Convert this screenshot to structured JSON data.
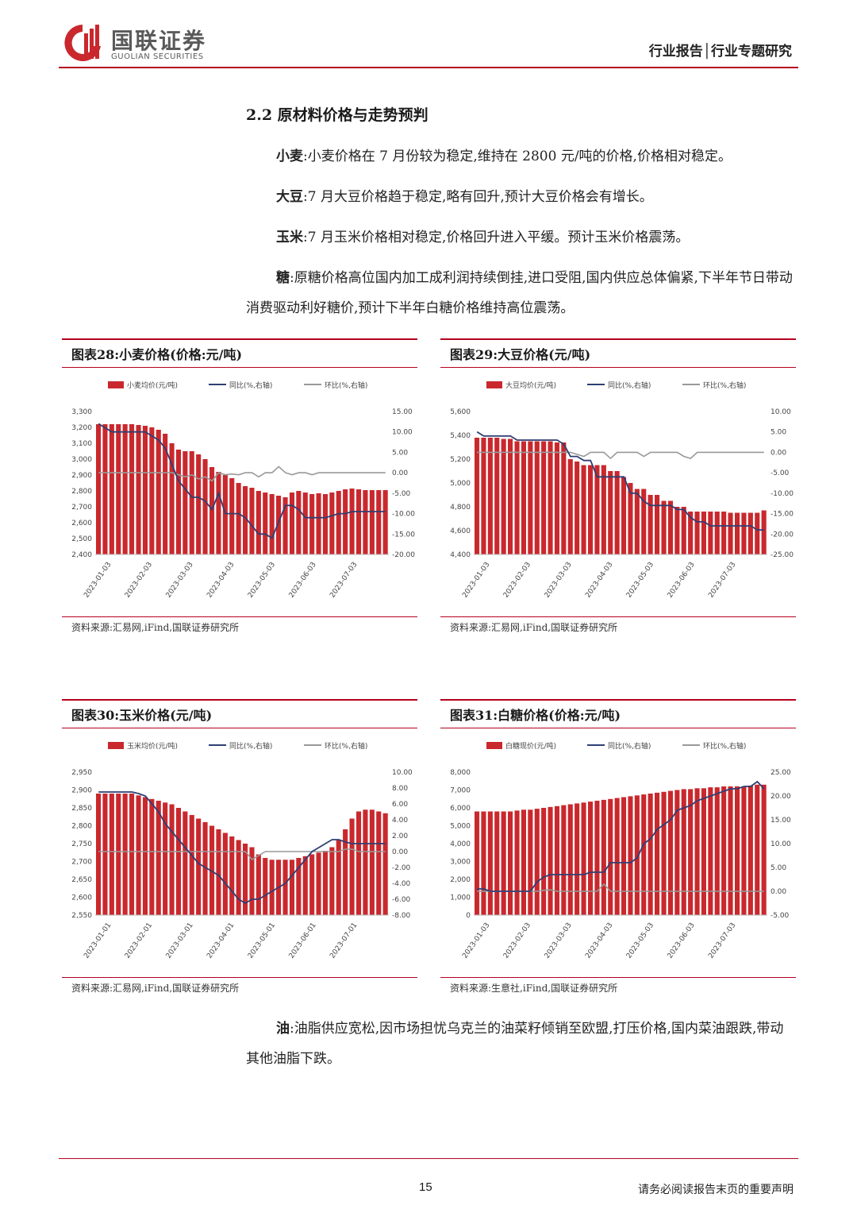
{
  "header": {
    "logo_cn": "国联证券",
    "logo_en": "GUOLIAN SECURITIES",
    "report_type": "行业报告│行业专题研究",
    "brand_color": "#b4001e"
  },
  "section": {
    "title": "2.2 原材料价格与走势预判",
    "paragraphs": [
      {
        "lead": "小麦",
        "text": ":小麦价格在 7 月份较为稳定,维持在 2800 元/吨的价格,价格相对稳定。"
      },
      {
        "lead": "大豆",
        "text": ":7 月大豆价格趋于稳定,略有回升,预计大豆价格会有增长。"
      },
      {
        "lead": "玉米",
        "text": ":7 月玉米价格相对稳定,价格回升进入平缓。预计玉米价格震荡。"
      },
      {
        "lead": "糖",
        "text": ":原糖价格高位国内加工成利润持续倒挂,进口受阻,国内供应总体偏紧,下半年节日带动消费驱动利好糖价,预计下半年白糖价格维持高位震荡。"
      }
    ],
    "oil": {
      "lead": "油",
      "text": ":油脂供应宽松,因市场担忧乌克兰的油菜籽倾销至欧盟,打压价格,国内菜油跟跌,带动其他油脂下跌。"
    }
  },
  "charts": [
    {
      "title": "图表28:小麦价格(价格:元/吨)",
      "source": "资料来源:汇易网,iFind,国联证券研究所"
    },
    {
      "title": "图表29:大豆价格(元/吨)",
      "source": "资料来源:汇易网,iFind,国联证券研究所"
    },
    {
      "title": "图表30:玉米价格(元/吨)",
      "source": "资料来源:汇易网,iFind,国联证券研究所"
    },
    {
      "title": "图表31:白糖价格(价格:元/吨)",
      "source": "资料来源:生意社,iFind,国联证券研究所"
    }
  ],
  "chart_data": [
    {
      "type": "bar",
      "legend": [
        "小麦均价(元/吨)",
        "同比(%,右轴)",
        "环比(%,右轴)"
      ],
      "colors": {
        "bar": "#c9282d",
        "yoy": "#2e3f74",
        "mom": "#999999"
      },
      "xticks": [
        "2023-01-03",
        "2023-02-03",
        "2023-03-03",
        "2023-04-03",
        "2023-05-03",
        "2023-06-03",
        "2023-07-03"
      ],
      "yticks_left": [
        "3,300",
        "3,200",
        "3,100",
        "3,000",
        "2,900",
        "2,800",
        "2,700",
        "2,600",
        "2,500",
        "2,400"
      ],
      "yticks_right": [
        "15.00",
        "10.00",
        "5.00",
        "0.00",
        "-5.00",
        "-10.00",
        "-15.00",
        "-20.00"
      ],
      "ylim_left": [
        2400,
        3300
      ],
      "ylim_right": [
        -20,
        15
      ],
      "price": [
        3220,
        3220,
        3220,
        3220,
        3220,
        3220,
        3215,
        3210,
        3200,
        3185,
        3160,
        3100,
        3060,
        3050,
        3050,
        3030,
        3000,
        2950,
        2920,
        2900,
        2880,
        2850,
        2830,
        2820,
        2800,
        2790,
        2780,
        2770,
        2760,
        2790,
        2800,
        2790,
        2780,
        2785,
        2780,
        2790,
        2800,
        2810,
        2815,
        2810,
        2805,
        2805,
        2805,
        2805
      ],
      "yoy": [
        12,
        11,
        10,
        10,
        10,
        10,
        10,
        10,
        9,
        8,
        6,
        2,
        -2,
        -4,
        -6,
        -6,
        -7,
        -9,
        -5,
        -10,
        -10,
        -10,
        -11,
        -13,
        -15,
        -15,
        -16,
        -12,
        -8,
        -8,
        -9,
        -11,
        -11,
        -11,
        -11,
        -10.5,
        -10,
        -10,
        -9.5,
        -9.5,
        -9.5,
        -9.5,
        -9.5,
        -9.5
      ],
      "mom": [
        0,
        0,
        0,
        0,
        0,
        0,
        0,
        0,
        0,
        0,
        0,
        0,
        -0.5,
        -1,
        -0.5,
        -1.5,
        -1,
        -2,
        0,
        -0.5,
        -0.3,
        -0.5,
        0,
        0,
        -1,
        0,
        0,
        1.5,
        0,
        -0.5,
        0,
        0,
        -0.5,
        0,
        0,
        0,
        0,
        0,
        0,
        0,
        0,
        0,
        0,
        0
      ]
    },
    {
      "type": "bar",
      "legend": [
        "大豆均价(元/吨)",
        "同比(%,右轴)",
        "环比(%,右轴)"
      ],
      "colors": {
        "bar": "#c9282d",
        "yoy": "#2e3f74",
        "mom": "#999999"
      },
      "xticks": [
        "2023-01-03",
        "2023-02-03",
        "2023-03-03",
        "2023-04-03",
        "2023-05-03",
        "2023-06-03",
        "2023-07-03"
      ],
      "yticks_left": [
        "5,600",
        "5,400",
        "5,200",
        "5,000",
        "4,800",
        "4,600",
        "4,400"
      ],
      "yticks_right": [
        "10.00",
        "5.00",
        "0.00",
        "-5.00",
        "-10.00",
        "-15.00",
        "-20.00",
        "-25.00"
      ],
      "ylim_left": [
        4400,
        5600
      ],
      "ylim_right": [
        -25,
        10
      ],
      "price": [
        5380,
        5380,
        5380,
        5380,
        5370,
        5370,
        5350,
        5350,
        5350,
        5350,
        5350,
        5350,
        5340,
        5340,
        5200,
        5180,
        5150,
        5150,
        5150,
        5150,
        5100,
        5100,
        5050,
        5000,
        4950,
        4950,
        4900,
        4900,
        4850,
        4850,
        4800,
        4800,
        4760,
        4760,
        4760,
        4760,
        4760,
        4760,
        4750,
        4750,
        4750,
        4750,
        4750,
        4770
      ],
      "yoy": [
        5,
        4,
        4,
        4,
        4,
        4,
        3,
        3,
        3,
        3,
        3,
        3,
        3,
        2,
        -1,
        -1,
        -2,
        -2,
        -6,
        -6,
        -6,
        -6,
        -6,
        -10,
        -10,
        -12,
        -13,
        -13,
        -13,
        -13,
        -14,
        -14,
        -16,
        -17,
        -17,
        -18,
        -18,
        -18,
        -18,
        -18,
        -18,
        -18,
        -19,
        -19
      ],
      "mom": [
        0,
        0,
        0,
        0,
        0,
        0,
        0,
        0,
        0,
        0,
        0,
        0,
        0,
        0,
        0,
        -0.5,
        -1,
        0,
        0,
        0,
        -1.5,
        0,
        0,
        0,
        0,
        -1,
        0,
        0,
        0,
        0,
        0,
        -1,
        -1.5,
        0,
        0,
        0,
        0,
        0,
        0,
        0,
        0,
        0,
        0,
        0
      ]
    },
    {
      "type": "bar",
      "legend": [
        "玉米均价(元/吨)",
        "同比(%,右轴)",
        "环比(%,右轴)"
      ],
      "colors": {
        "bar": "#c9282d",
        "yoy": "#2e3f74",
        "mom": "#999999"
      },
      "xticks": [
        "2023-01-01",
        "2023-02-01",
        "2023-03-01",
        "2023-04-01",
        "2023-05-01",
        "2023-06-01",
        "2023-07-01"
      ],
      "yticks_left": [
        "2,950",
        "2,900",
        "2,850",
        "2,800",
        "2,750",
        "2,700",
        "2,650",
        "2,600",
        "2,550"
      ],
      "yticks_right": [
        "10.00",
        "8.00",
        "6.00",
        "4.00",
        "2.00",
        "0.00",
        "-2.00",
        "-4.00",
        "-6.00",
        "-8.00"
      ],
      "ylim_left": [
        2550,
        2950
      ],
      "ylim_right": [
        -8,
        10
      ],
      "price": [
        2890,
        2890,
        2890,
        2890,
        2890,
        2890,
        2885,
        2880,
        2875,
        2870,
        2865,
        2860,
        2850,
        2840,
        2830,
        2820,
        2810,
        2800,
        2790,
        2780,
        2770,
        2760,
        2750,
        2740,
        2720,
        2710,
        2705,
        2705,
        2705,
        2705,
        2710,
        2715,
        2720,
        2725,
        2730,
        2740,
        2760,
        2790,
        2820,
        2840,
        2845,
        2845,
        2840,
        2835
      ],
      "yoy": [
        7.5,
        7.5,
        7.5,
        7.5,
        7.5,
        7.5,
        7.3,
        7,
        6,
        5,
        3.5,
        2.5,
        1.5,
        0.5,
        -0.5,
        -1.5,
        -2,
        -2.5,
        -3,
        -4,
        -5,
        -6,
        -6.5,
        -6,
        -6,
        -5.5,
        -5,
        -4.5,
        -4,
        -3,
        -2,
        -1,
        0,
        0.5,
        1,
        1.5,
        1.5,
        1.2,
        1,
        1,
        1,
        1,
        1,
        1
      ],
      "mom": [
        0,
        0,
        0,
        0,
        0,
        0,
        0,
        0,
        0,
        0,
        0,
        0,
        0,
        0,
        0,
        0,
        0,
        0,
        0,
        0,
        0,
        0,
        0,
        -1,
        -0.5,
        0,
        0,
        0,
        0,
        0,
        0,
        0,
        0,
        0,
        0,
        0,
        0,
        0.3,
        0.3,
        0,
        0,
        0,
        0,
        0
      ]
    },
    {
      "type": "bar",
      "legend": [
        "白糖现价(元/吨)",
        "同比(%,右轴)",
        "环比(%,右轴)"
      ],
      "colors": {
        "bar": "#c9282d",
        "yoy": "#2e3f74",
        "mom": "#999999"
      },
      "xticks": [
        "2023-01-03",
        "2023-02-03",
        "2023-03-03",
        "2023-04-03",
        "2023-05-03",
        "2023-06-03",
        "2023-07-03"
      ],
      "yticks_left": [
        "8,000",
        "7,000",
        "6,000",
        "5,000",
        "4,000",
        "3,000",
        "2,000",
        "1,000",
        "0"
      ],
      "yticks_right": [
        "25.00",
        "20.00",
        "15.00",
        "10.00",
        "5.00",
        "0.00",
        "-5.00"
      ],
      "ylim_left": [
        0,
        8000
      ],
      "ylim_right": [
        -5,
        25
      ],
      "price": [
        5800,
        5800,
        5800,
        5800,
        5800,
        5800,
        5850,
        5900,
        5900,
        5950,
        6000,
        6050,
        6100,
        6150,
        6200,
        6250,
        6300,
        6350,
        6400,
        6450,
        6500,
        6550,
        6600,
        6650,
        6700,
        6750,
        6800,
        6850,
        6900,
        6950,
        7000,
        7050,
        7050,
        7100,
        7100,
        7150,
        7150,
        7200,
        7200,
        7200,
        7200,
        7250,
        7300,
        7300
      ],
      "yoy": [
        0.5,
        0.5,
        0,
        0,
        0,
        0,
        0,
        0,
        0,
        2,
        3,
        3.5,
        3.5,
        3.5,
        3.5,
        3.5,
        3.5,
        4,
        4,
        4,
        6,
        6,
        6,
        6,
        7,
        10,
        11,
        13,
        14,
        15,
        17,
        17.5,
        18,
        19,
        19.5,
        20,
        20.5,
        21,
        21.5,
        21.5,
        22,
        22,
        23,
        21.5
      ],
      "mom": [
        0,
        0,
        0,
        0,
        0,
        0,
        0,
        0,
        0,
        0,
        0.2,
        0.3,
        0,
        0,
        0,
        0,
        0,
        0,
        0,
        1.5,
        0,
        0,
        0,
        0,
        0,
        0,
        0,
        0,
        0,
        0,
        0,
        0,
        0,
        0,
        0,
        0,
        0,
        0,
        0,
        0,
        0,
        0,
        0,
        0
      ]
    }
  ],
  "footer": {
    "page_number": "15",
    "disclaimer": "请务必阅读报告末页的重要声明"
  }
}
